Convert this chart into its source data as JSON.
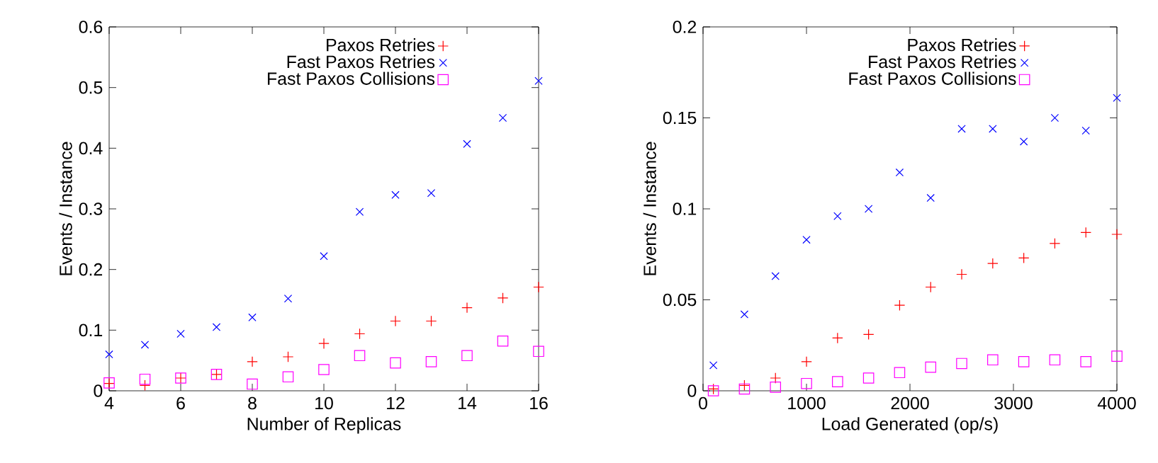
{
  "chart_data": [
    {
      "type": "scatter",
      "xlabel": "Number of Replicas",
      "ylabel": "Events / Instance",
      "x": [
        4,
        5,
        6,
        7,
        8,
        9,
        10,
        11,
        12,
        13,
        14,
        15,
        16
      ],
      "xlim": [
        4,
        16
      ],
      "xticks": [
        4,
        6,
        8,
        10,
        12,
        14,
        16
      ],
      "ylim": [
        0,
        0.6
      ],
      "yticks": [
        0,
        0.1,
        0.2,
        0.3,
        0.4,
        0.5,
        0.6
      ],
      "legend": "top right",
      "grid": false,
      "series": [
        {
          "name": "Paxos Retries",
          "color": "#ff0000",
          "marker": "plus",
          "values": [
            0.012,
            0.009,
            0.021,
            0.027,
            0.048,
            0.056,
            0.078,
            0.094,
            0.115,
            0.115,
            0.137,
            0.153,
            0.171
          ]
        },
        {
          "name": "Fast Paxos Retries",
          "color": "#0000ff",
          "marker": "cross",
          "values": [
            0.06,
            0.076,
            0.094,
            0.105,
            0.121,
            0.152,
            0.222,
            0.295,
            0.323,
            0.326,
            0.407,
            0.45,
            0.511
          ]
        },
        {
          "name": "Fast Paxos Collisions",
          "color": "#ff00ff",
          "marker": "square",
          "values": [
            0.013,
            0.019,
            0.021,
            0.027,
            0.011,
            0.023,
            0.035,
            0.058,
            0.046,
            0.048,
            0.058,
            0.082,
            0.065
          ]
        }
      ]
    },
    {
      "type": "scatter",
      "xlabel": "Load Generated (op/s)",
      "ylabel": "Events / Instance",
      "x": [
        100,
        400,
        700,
        1000,
        1300,
        1600,
        1900,
        2200,
        2500,
        2800,
        3100,
        3400,
        3700,
        4000
      ],
      "xlim": [
        0,
        4000
      ],
      "xticks": [
        0,
        1000,
        2000,
        3000,
        4000
      ],
      "ylim": [
        0,
        0.2
      ],
      "yticks": [
        0,
        0.05,
        0.1,
        0.15,
        0.2
      ],
      "legend": "top right",
      "grid": false,
      "series": [
        {
          "name": "Paxos Retries",
          "color": "#ff0000",
          "marker": "plus",
          "values": [
            0.001,
            0.003,
            0.007,
            0.016,
            0.029,
            0.031,
            0.047,
            0.057,
            0.064,
            0.07,
            0.073,
            0.081,
            0.087,
            0.086
          ]
        },
        {
          "name": "Fast Paxos Retries",
          "color": "#0000ff",
          "marker": "cross",
          "values": [
            0.014,
            0.042,
            0.063,
            0.083,
            0.096,
            0.1,
            0.12,
            0.106,
            0.144,
            0.144,
            0.137,
            0.15,
            0.143,
            0.161
          ]
        },
        {
          "name": "Fast Paxos Collisions",
          "color": "#ff00ff",
          "marker": "square",
          "values": [
            0.0,
            0.001,
            0.002,
            0.004,
            0.005,
            0.007,
            0.01,
            0.013,
            0.015,
            0.017,
            0.016,
            0.017,
            0.016,
            0.019
          ]
        }
      ]
    }
  ]
}
